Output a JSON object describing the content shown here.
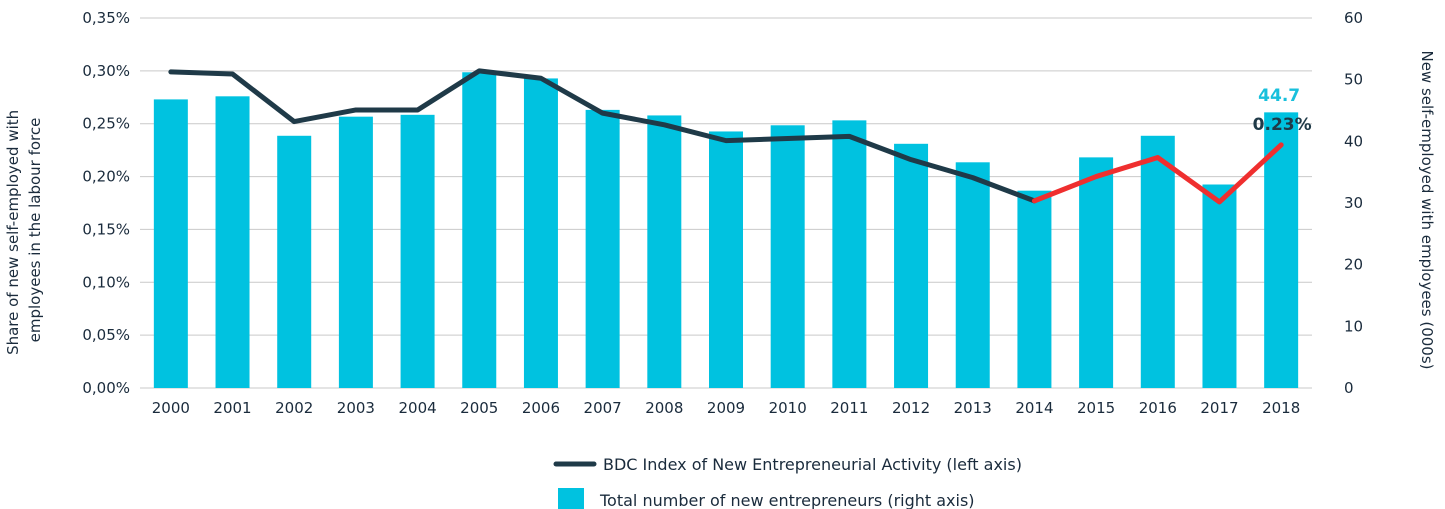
{
  "chart_data": {
    "type": "bar",
    "categories": [
      "2000",
      "2001",
      "2002",
      "2003",
      "2004",
      "2005",
      "2006",
      "2007",
      "2008",
      "2009",
      "2010",
      "2011",
      "2012",
      "2013",
      "2014",
      "2015",
      "2016",
      "2017",
      "2018"
    ],
    "series": [
      {
        "name": "BDC Index of New Entrepreneurial Activity (left axis)",
        "type": "line",
        "axis": "left",
        "values": [
          0.299,
          0.297,
          0.252,
          0.263,
          0.263,
          0.3,
          0.293,
          0.26,
          0.249,
          0.234,
          0.236,
          0.238,
          0.216,
          0.199,
          0.177,
          0.2,
          0.218,
          0.176,
          0.23
        ],
        "highlight_from_index": 14,
        "color": "#1f3a48",
        "highlight_color": "#ef2f2f"
      },
      {
        "name": "Total number of new entrepreneurs (right axis)",
        "type": "bar",
        "axis": "right",
        "values": [
          46.8,
          47.3,
          40.9,
          44.0,
          44.3,
          51.2,
          50.2,
          45.1,
          44.2,
          41.6,
          42.6,
          43.4,
          39.6,
          36.6,
          32.0,
          37.4,
          40.9,
          33.0,
          44.7
        ],
        "color": "#00c2e0"
      }
    ],
    "y_left": {
      "label": "Share of new self-employed with employees in the labour force",
      "label_lines": [
        "Share of new self-employed with",
        "employees in the labour force"
      ],
      "ylim": [
        0,
        0.35
      ],
      "ticks": [
        "0,00%",
        "0,05%",
        "0,10%",
        "0,15%",
        "0,20%",
        "0,25%",
        "0,30%",
        "0,35%"
      ]
    },
    "y_right": {
      "label": "New self-employed with employees (000s)",
      "ylim": [
        0,
        60
      ],
      "ticks": [
        "0",
        "10",
        "20",
        "30",
        "40",
        "50",
        "60"
      ]
    },
    "annotations": {
      "bar_last": "44.7",
      "line_last": "0.23%"
    },
    "grid": true,
    "legend_position": "bottom-center",
    "colors": {
      "bar": "#00c2e0",
      "line": "#1f3a48",
      "line_highlight": "#ef2f2f",
      "grid": "#c9c9c9",
      "text": "#1a2b3c",
      "bar_annotation": "#19c0dc"
    }
  }
}
